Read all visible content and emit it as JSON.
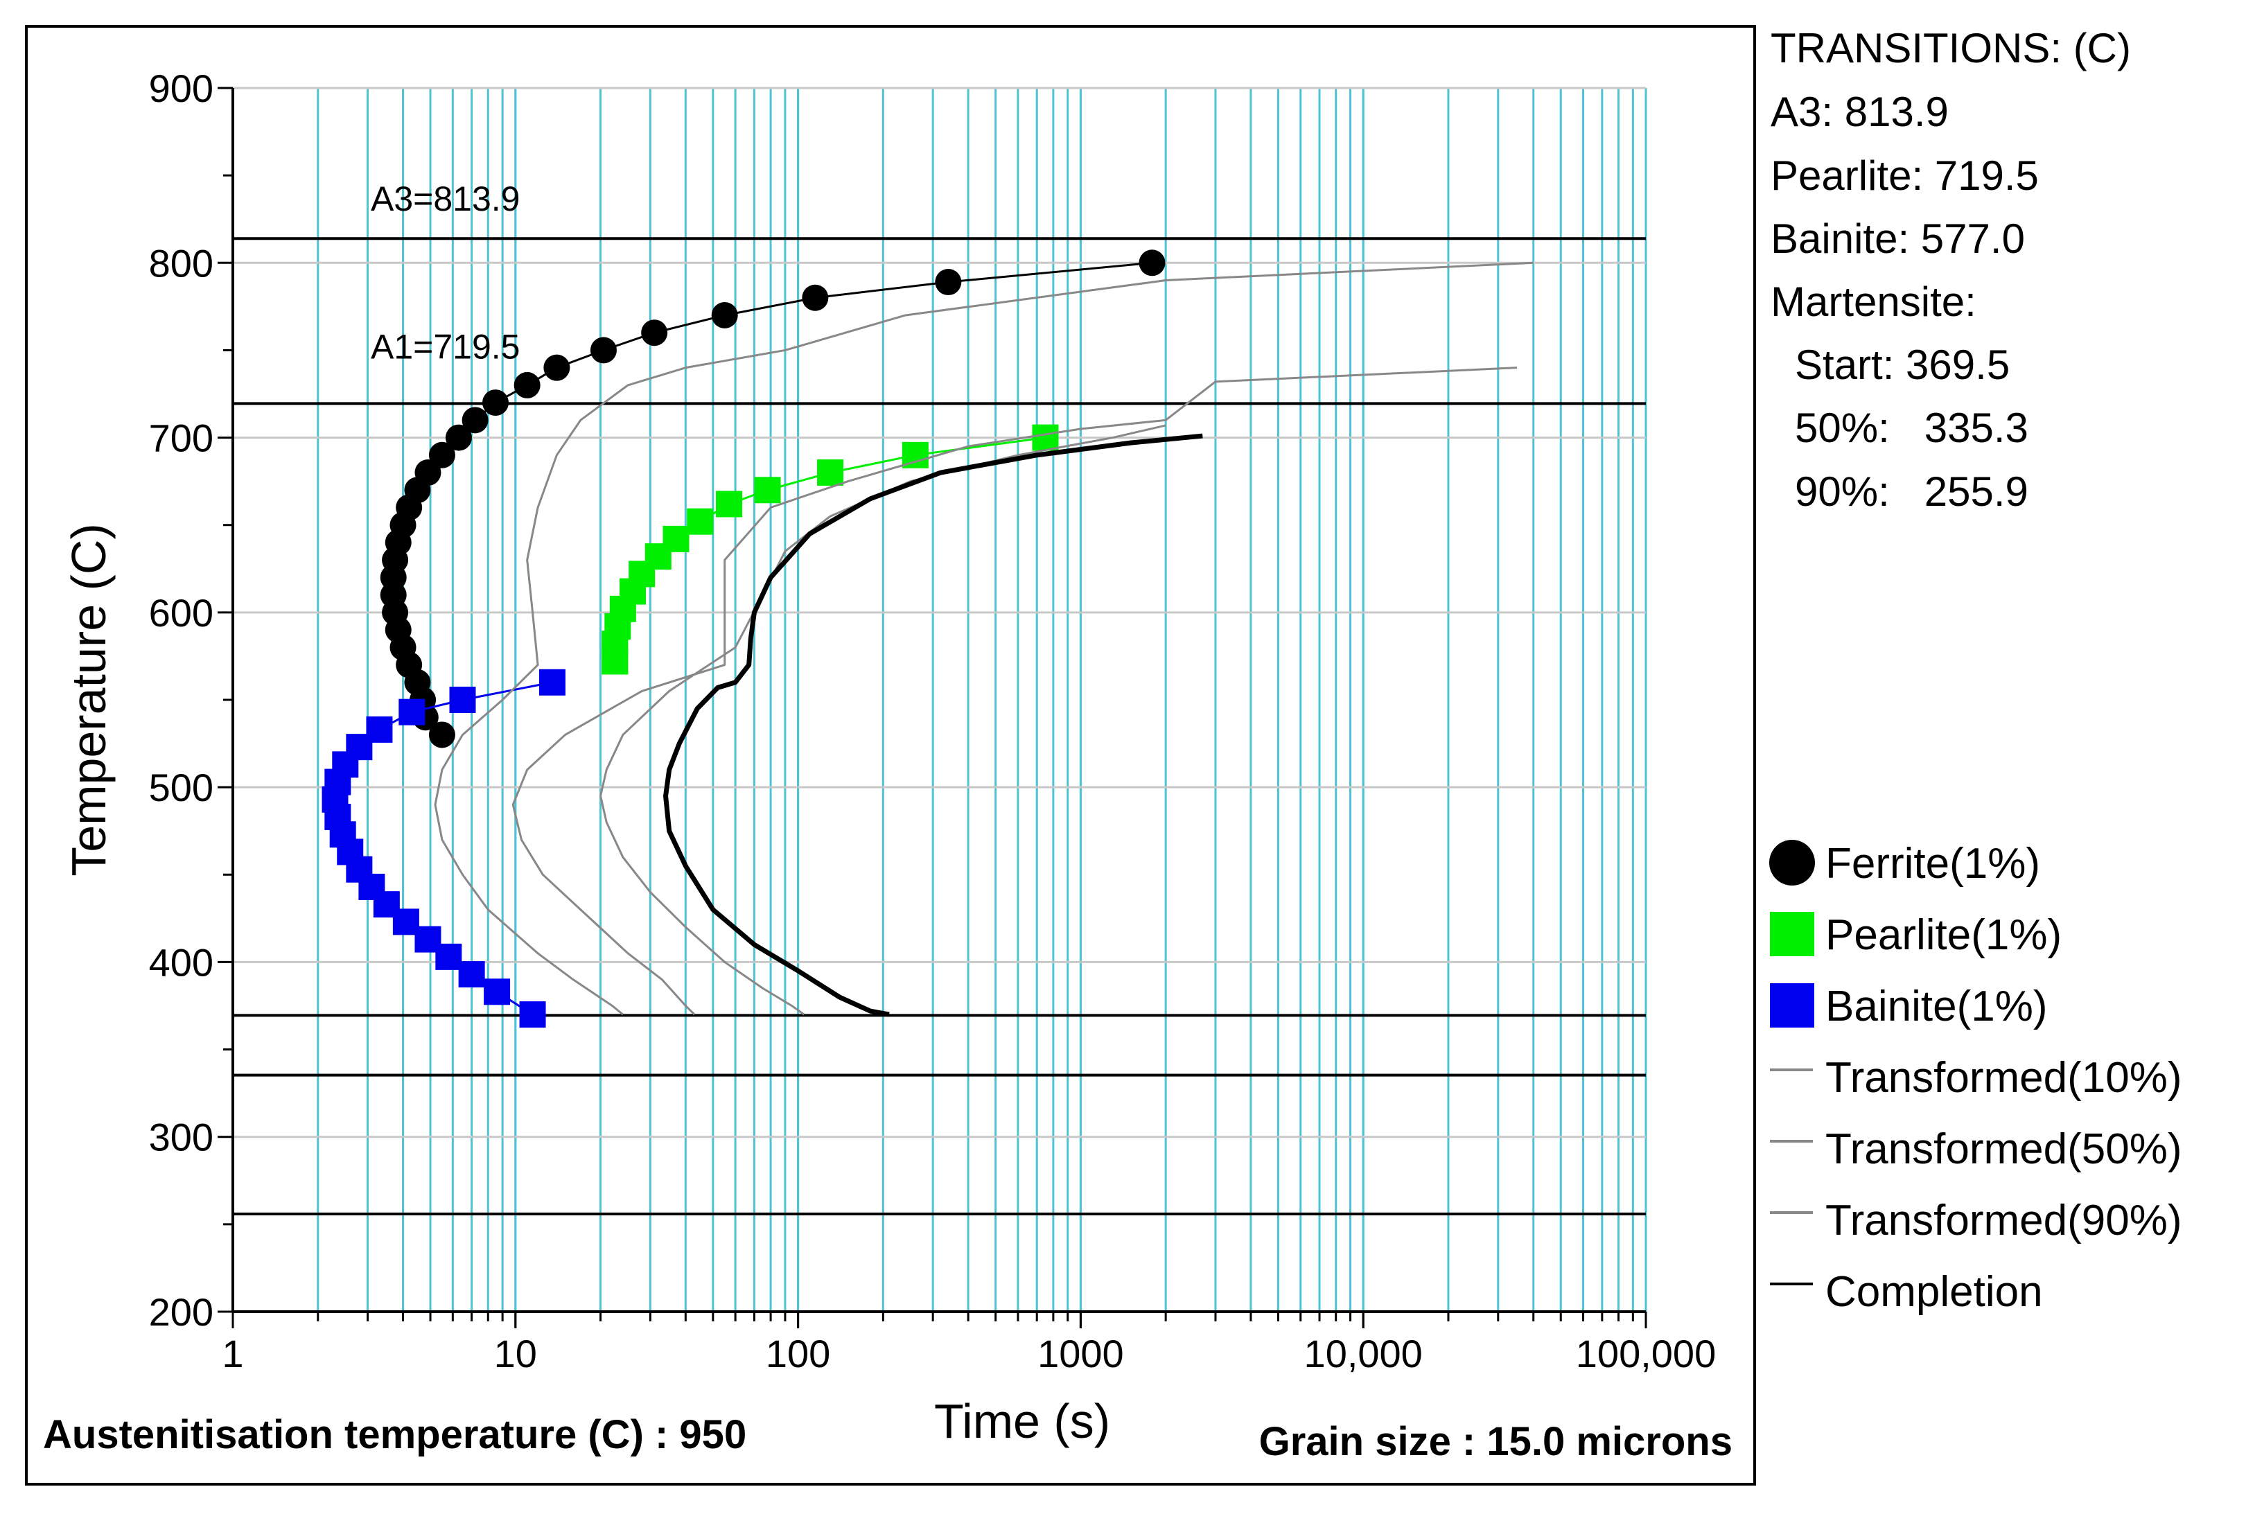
{
  "chart_data": {
    "type": "scatter",
    "title": "",
    "xlabel": "Time (s)",
    "ylabel": "Temperature (C)",
    "xscale": "log",
    "xlim": [
      1,
      100000
    ],
    "ylim": [
      200,
      900
    ],
    "x_tick_labels": [
      {
        "value": 1,
        "label": "1"
      },
      {
        "value": 10,
        "label": "10"
      },
      {
        "value": 100,
        "label": "100"
      },
      {
        "value": 1000,
        "label": "1000"
      },
      {
        "value": 10000,
        "label": "10,000"
      },
      {
        "value": 100000,
        "label": "100,000"
      }
    ],
    "y_tick_labels": [
      {
        "value": 900,
        "label": "900"
      },
      {
        "value": 800,
        "label": "800"
      },
      {
        "value": 700,
        "label": "700"
      },
      {
        "value": 600,
        "label": "600"
      },
      {
        "value": 500,
        "label": "500"
      },
      {
        "value": 400,
        "label": "400"
      },
      {
        "value": 300,
        "label": "300"
      },
      {
        "value": 200,
        "label": "200"
      }
    ],
    "hlines": [
      {
        "name": "A3",
        "value": 813.9,
        "label": "A3=813.9"
      },
      {
        "name": "A1",
        "value": 719.5,
        "label": "A1=719.5"
      },
      {
        "name": "Ms",
        "value": 369.5
      },
      {
        "name": "M50",
        "value": 335.3
      },
      {
        "name": "M90",
        "value": 255.9
      }
    ],
    "series": [
      {
        "name": "Ferrite(1%)",
        "marker": "circle",
        "color": "#000000",
        "points": [
          [
            1790,
            800
          ],
          [
            340,
            789
          ],
          [
            115,
            780
          ],
          [
            55,
            770
          ],
          [
            31,
            760
          ],
          [
            20.5,
            750
          ],
          [
            14,
            740
          ],
          [
            11,
            730
          ],
          [
            8.5,
            720
          ],
          [
            7.2,
            710
          ],
          [
            6.3,
            700
          ],
          [
            5.5,
            690
          ],
          [
            4.9,
            680
          ],
          [
            4.5,
            670
          ],
          [
            4.2,
            660
          ],
          [
            4.0,
            650
          ],
          [
            3.85,
            640
          ],
          [
            3.75,
            630
          ],
          [
            3.7,
            620
          ],
          [
            3.7,
            610
          ],
          [
            3.75,
            600
          ],
          [
            3.85,
            590
          ],
          [
            4.0,
            580
          ],
          [
            4.2,
            570
          ],
          [
            4.5,
            560
          ],
          [
            4.7,
            550
          ],
          [
            4.8,
            540
          ],
          [
            5.5,
            530
          ]
        ]
      },
      {
        "name": "Pearlite(1%)",
        "marker": "square",
        "color": "#00ee00",
        "points": [
          [
            750,
            700
          ],
          [
            260,
            690
          ],
          [
            130,
            680
          ],
          [
            78,
            670
          ],
          [
            57,
            662
          ],
          [
            45,
            652
          ],
          [
            37,
            642
          ],
          [
            32,
            632
          ],
          [
            28,
            622
          ],
          [
            26,
            612
          ],
          [
            24,
            602
          ],
          [
            23,
            592
          ],
          [
            22.5,
            582
          ],
          [
            22.5,
            572
          ]
        ]
      },
      {
        "name": "Bainite(1%)",
        "marker": "square",
        "color": "#0000ee",
        "points": [
          [
            13.5,
            560
          ],
          [
            6.5,
            550
          ],
          [
            4.3,
            543
          ],
          [
            3.3,
            533
          ],
          [
            2.8,
            523
          ],
          [
            2.5,
            513
          ],
          [
            2.35,
            503
          ],
          [
            2.3,
            493
          ],
          [
            2.35,
            483
          ],
          [
            2.45,
            473
          ],
          [
            2.6,
            463
          ],
          [
            2.8,
            453
          ],
          [
            3.1,
            443
          ],
          [
            3.5,
            433
          ],
          [
            4.1,
            423
          ],
          [
            4.9,
            413
          ],
          [
            5.8,
            403
          ],
          [
            7,
            393
          ],
          [
            8.6,
            383
          ],
          [
            11.5,
            370
          ]
        ]
      },
      {
        "name": "Transformed(10%)",
        "line": true,
        "color": "#888888",
        "points": [
          [
            40000,
            800
          ],
          [
            2000,
            790
          ],
          [
            240,
            770
          ],
          [
            90,
            750
          ],
          [
            40,
            740
          ],
          [
            25,
            730
          ],
          [
            17,
            710
          ],
          [
            14,
            690
          ],
          [
            12,
            660
          ],
          [
            11,
            630
          ],
          [
            11.5,
            600
          ],
          [
            12,
            570
          ],
          [
            9,
            550
          ],
          [
            6.5,
            530
          ],
          [
            5.5,
            510
          ],
          [
            5.2,
            490
          ],
          [
            5.5,
            470
          ],
          [
            6.5,
            450
          ],
          [
            8,
            430
          ],
          [
            12,
            405
          ],
          [
            16,
            390
          ],
          [
            22,
            375
          ],
          [
            24,
            370
          ]
        ]
      },
      {
        "name": "Transformed(50%)",
        "line": true,
        "color": "#888888",
        "points": [
          [
            35000,
            740
          ],
          [
            3000,
            732
          ],
          [
            2000,
            710
          ],
          [
            1000,
            705
          ],
          [
            400,
            695
          ],
          [
            150,
            675
          ],
          [
            80,
            660
          ],
          [
            55,
            630
          ],
          [
            55,
            600
          ],
          [
            55,
            570
          ],
          [
            28,
            555
          ],
          [
            15,
            530
          ],
          [
            11,
            510
          ],
          [
            9.8,
            490
          ],
          [
            10.5,
            470
          ],
          [
            12.5,
            450
          ],
          [
            17,
            430
          ],
          [
            25,
            405
          ],
          [
            33,
            390
          ],
          [
            40,
            375
          ],
          [
            43,
            370
          ]
        ]
      },
      {
        "name": "Transformed(90%)",
        "line": true,
        "color": "#888888",
        "points": [
          [
            2000,
            707
          ],
          [
            1300,
            700
          ],
          [
            600,
            690
          ],
          [
            250,
            675
          ],
          [
            130,
            655
          ],
          [
            90,
            635
          ],
          [
            75,
            610
          ],
          [
            60,
            580
          ],
          [
            35,
            555
          ],
          [
            24,
            530
          ],
          [
            21,
            510
          ],
          [
            20,
            495
          ],
          [
            21,
            480
          ],
          [
            24,
            460
          ],
          [
            30,
            440
          ],
          [
            40,
            420
          ],
          [
            55,
            400
          ],
          [
            75,
            385
          ],
          [
            95,
            375
          ],
          [
            105,
            370
          ]
        ]
      },
      {
        "name": "Completion",
        "line": true,
        "color": "#000000",
        "bold": true,
        "points": [
          [
            2700,
            701
          ],
          [
            1500,
            697
          ],
          [
            700,
            690
          ],
          [
            320,
            680
          ],
          [
            180,
            665
          ],
          [
            110,
            645
          ],
          [
            80,
            620
          ],
          [
            70,
            600
          ],
          [
            68,
            585
          ],
          [
            67,
            570
          ],
          [
            60,
            560
          ],
          [
            52,
            557
          ],
          [
            44,
            545
          ],
          [
            38,
            525
          ],
          [
            35,
            510
          ],
          [
            34,
            495
          ],
          [
            35,
            475
          ],
          [
            40,
            455
          ],
          [
            50,
            430
          ],
          [
            70,
            410
          ],
          [
            100,
            395
          ],
          [
            140,
            380
          ],
          [
            180,
            372
          ],
          [
            210,
            370
          ]
        ]
      }
    ]
  },
  "transitions": {
    "title": "TRANSITIONS: (C)",
    "a3": "A3: 813.9",
    "pearlite": "Pearlite: 719.5",
    "bainite": "Bainite: 577.0",
    "martensite": "Martensite:",
    "ms_start": "Start: 369.5",
    "ms_50": "50%:   335.3",
    "ms_90": "90%:   255.9"
  },
  "legend": [
    {
      "label": "Ferrite(1%)",
      "marker": "circle",
      "color": "#000000"
    },
    {
      "label": "Pearlite(1%)",
      "marker": "square",
      "color": "#00ee00"
    },
    {
      "label": "Bainite(1%)",
      "marker": "square",
      "color": "#0000ee"
    },
    {
      "label": "Transformed(10%)",
      "marker": "line",
      "color": "#888888"
    },
    {
      "label": "Transformed(50%)",
      "marker": "line",
      "color": "#888888"
    },
    {
      "label": "Transformed(90%)",
      "marker": "line",
      "color": "#888888"
    },
    {
      "label": "Completion",
      "marker": "line",
      "color": "#000000"
    }
  ],
  "footer": {
    "austenitisation": "Austenitisation temperature (C) : 950",
    "grain_size": "Grain size : 15.0 microns"
  },
  "colors": {
    "vertical_grid": "#4fc3d6",
    "horizontal_grid": "#c8c8c8",
    "frame": "#000000"
  }
}
